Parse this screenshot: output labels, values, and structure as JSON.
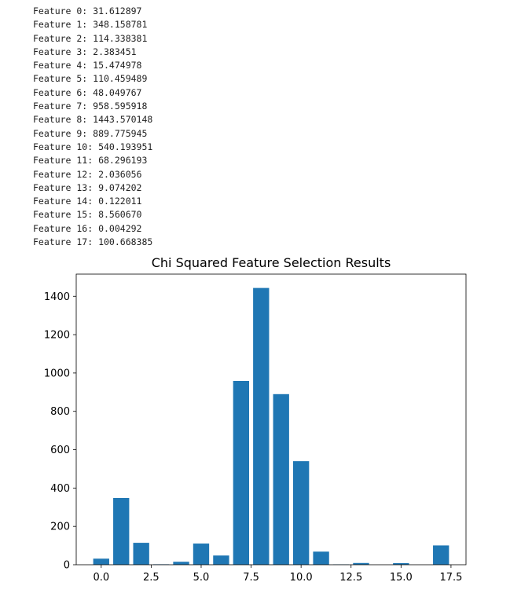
{
  "output_lines": [
    "Feature 0: 31.612897",
    "Feature 1: 348.158781",
    "Feature 2: 114.338381",
    "Feature 3: 2.383451",
    "Feature 4: 15.474978",
    "Feature 5: 110.459489",
    "Feature 6: 48.049767",
    "Feature 7: 958.595918",
    "Feature 8: 1443.570148",
    "Feature 9: 889.775945",
    "Feature 10: 540.193951",
    "Feature 11: 68.296193",
    "Feature 12: 2.036056",
    "Feature 13: 9.074202",
    "Feature 14: 0.122011",
    "Feature 15: 8.560670",
    "Feature 16: 0.004292",
    "Feature 17: 100.668385"
  ],
  "chart_data": {
    "type": "bar",
    "title": "Chi Squared Feature Selection Results",
    "xlabel": "",
    "ylabel": "",
    "x": [
      0,
      1,
      2,
      3,
      4,
      5,
      6,
      7,
      8,
      9,
      10,
      11,
      12,
      13,
      14,
      15,
      16,
      17
    ],
    "values": [
      31.612897,
      348.158781,
      114.338381,
      2.383451,
      15.474978,
      110.459489,
      48.049767,
      958.595918,
      1443.570148,
      889.775945,
      540.193951,
      68.296193,
      2.036056,
      9.074202,
      0.122011,
      8.56067,
      0.004292,
      100.668385
    ],
    "xlim": [
      -1.25,
      18.25
    ],
    "ylim": [
      0,
      1515.75
    ],
    "xticks": [
      0.0,
      2.5,
      5.0,
      7.5,
      10.0,
      12.5,
      15.0,
      17.5
    ],
    "xtick_labels": [
      "0.0",
      "2.5",
      "5.0",
      "7.5",
      "10.0",
      "12.5",
      "15.0",
      "17.5"
    ],
    "yticks": [
      0,
      200,
      400,
      600,
      800,
      1000,
      1200,
      1400
    ],
    "ytick_labels": [
      "0",
      "200",
      "400",
      "600",
      "800",
      "1000",
      "1200",
      "1400"
    ],
    "bar_color": "#1f77b4",
    "grid": false,
    "legend": "none"
  }
}
